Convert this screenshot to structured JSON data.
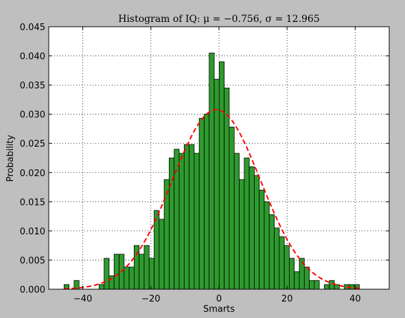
{
  "chart_data": {
    "type": "bar",
    "title": "Histogram of IQ:  μ = −0.756,  σ = 12.965",
    "xlabel": "Smarts",
    "ylabel": "Probability",
    "xlim": [
      -50,
      50
    ],
    "ylim": [
      0,
      0.045
    ],
    "grid": true,
    "x_ticks": [
      -40,
      -20,
      0,
      20,
      40
    ],
    "x_tick_labels": [
      "−40",
      "−20",
      "0",
      "20",
      "40"
    ],
    "y_ticks": [
      0,
      0.005,
      0.01,
      0.015,
      0.02,
      0.025,
      0.03,
      0.035,
      0.04,
      0.045
    ],
    "y_tick_labels": [
      "0.000",
      "0.005",
      "0.010",
      "0.015",
      "0.020",
      "0.025",
      "0.030",
      "0.035",
      "0.040",
      "0.045"
    ],
    "bin_start": -45.5,
    "bin_width": 1.47,
    "bin_values": [
      0.0008,
      0,
      0.0015,
      0,
      0,
      0,
      0,
      0.0008,
      0.0053,
      0.0023,
      0.006,
      0.006,
      0.0038,
      0.0038,
      0.0075,
      0.006,
      0.0075,
      0.0053,
      0.0135,
      0.012,
      0.0188,
      0.0225,
      0.024,
      0.0233,
      0.0248,
      0.0248,
      0.0233,
      0.0293,
      0.03,
      0.0405,
      0.036,
      0.039,
      0.0345,
      0.0278,
      0.0233,
      0.0188,
      0.0225,
      0.021,
      0.0195,
      0.017,
      0.015,
      0.0128,
      0.0105,
      0.009,
      0.0075,
      0.0053,
      0.003,
      0.0053,
      0.0038,
      0.0015,
      0.0015,
      0,
      0.0008,
      0.0015,
      0.0008,
      0,
      0.0008,
      0.0008,
      0.0008
    ],
    "fit_curve": {
      "type": "normal_pdf",
      "mu": -0.756,
      "sigma": 12.965
    },
    "colors": {
      "bars": "#2e9a2e",
      "bar_edge": "#000000",
      "curve": "#ff0000",
      "background": "#bfbfbf",
      "plot_area": "#ffffff"
    }
  }
}
